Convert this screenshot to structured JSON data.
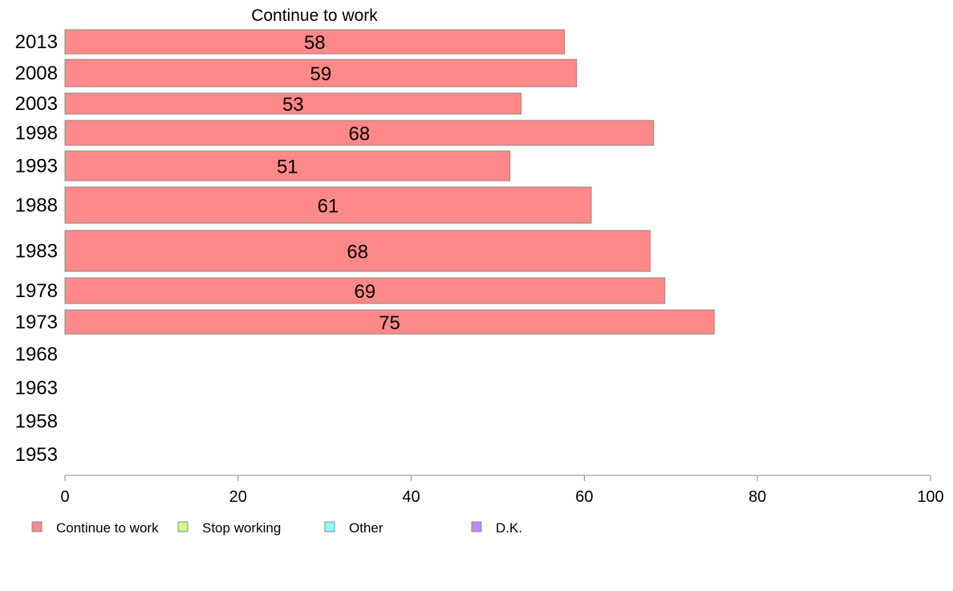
{
  "chart_data": {
    "type": "bar",
    "orientation": "horizontal",
    "title": "Continue to work",
    "categories": [
      "2013",
      "2008",
      "2003",
      "1998",
      "1993",
      "1988",
      "1983",
      "1978",
      "1973",
      "1968",
      "1963",
      "1958",
      "1953"
    ],
    "series": [
      {
        "name": "Continue to work",
        "color": "#ff8888",
        "values": [
          57.7,
          59.1,
          52.7,
          68.0,
          51.4,
          60.8,
          67.6,
          69.3,
          75.0,
          null,
          null,
          null,
          null
        ]
      },
      {
        "name": "Stop working",
        "color": "#ccff88",
        "values": [
          null,
          null,
          null,
          null,
          null,
          null,
          null,
          null,
          null,
          null,
          null,
          null,
          null
        ]
      },
      {
        "name": "Other",
        "color": "#88ffff",
        "values": [
          null,
          null,
          null,
          null,
          null,
          null,
          null,
          null,
          null,
          null,
          null,
          null,
          null
        ]
      },
      {
        "name": "D.K.",
        "color": "#bb88ff",
        "values": [
          null,
          null,
          null,
          null,
          null,
          null,
          null,
          null,
          null,
          null,
          null,
          null,
          null
        ]
      }
    ],
    "data_labels": [
      "58",
      "59",
      "53",
      "68",
      "51",
      "61",
      "68",
      "69",
      "75",
      "",
      "",
      "",
      ""
    ],
    "xlim": [
      0,
      100
    ],
    "x_ticks": [
      0,
      20,
      40,
      60,
      80,
      100
    ],
    "x_tick_labels": [
      "0",
      "20",
      "40",
      "60",
      "80",
      "100"
    ],
    "xlabel": "",
    "ylabel": "",
    "grid": false,
    "legend_position": "bottom-left"
  }
}
